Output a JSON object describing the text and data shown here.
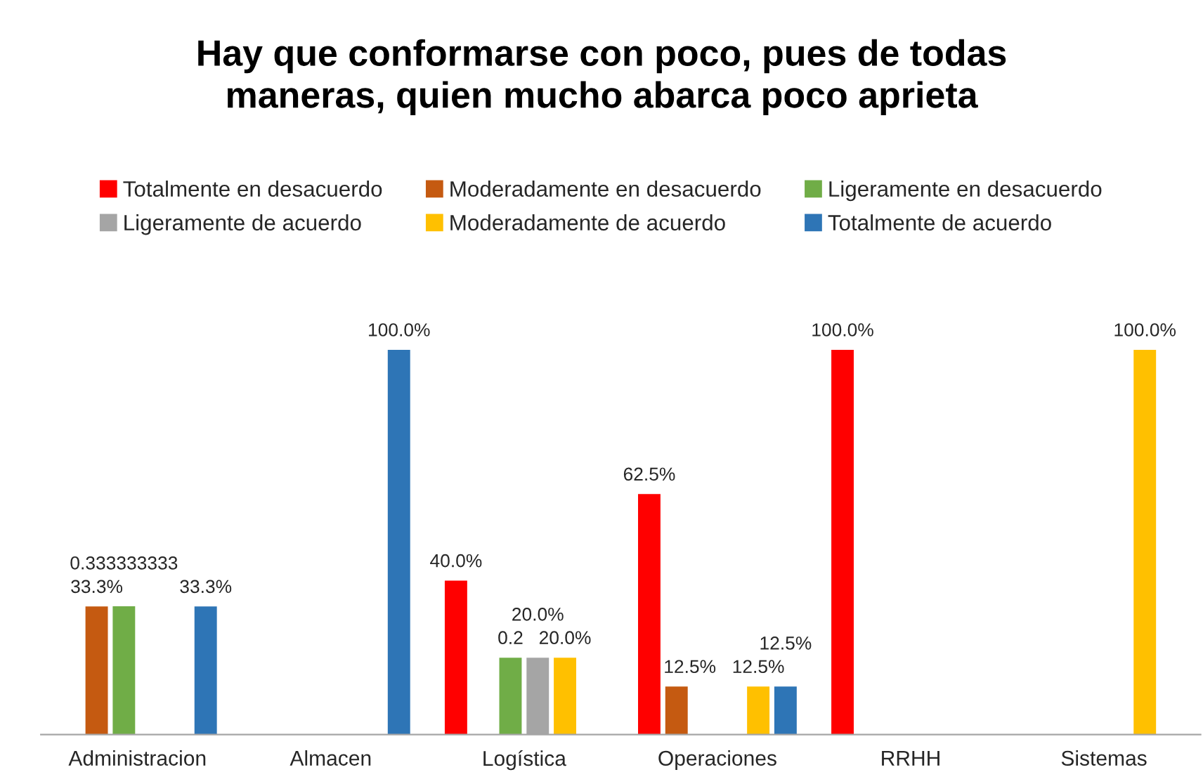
{
  "chart_data": {
    "type": "bar",
    "title": "Hay que conformarse con poco, pues de todas\nmaneras, quien mucho abarca poco aprieta",
    "categories": [
      "Administracion",
      "Almacen",
      "Logística",
      "Operaciones",
      "RRHH",
      "Sistemas"
    ],
    "tick_labels": "x",
    "legend": "top",
    "grid": false,
    "series": [
      {
        "name": "Totalmente en desacuerdo",
        "color": "#ff0000",
        "values": [
          null,
          null,
          0.4,
          0.625,
          1,
          null
        ],
        "value_labels": [
          null,
          null,
          "40.0%",
          "62.5%",
          "100.0%",
          null
        ]
      },
      {
        "name": "Moderadamente en desacuerdo",
        "color": "#c55a11",
        "values": [
          0.333,
          null,
          null,
          0.125,
          null,
          null
        ],
        "value_labels": [
          "33.3%",
          null,
          null,
          "12.5%",
          null,
          null
        ]
      },
      {
        "name": "Ligeramente en desacuerdo",
        "color": "#70ad47",
        "values": [
          0.333333333,
          null,
          0.2,
          null,
          null,
          null
        ],
        "value_labels": [
          "0.333333333",
          null,
          "0.2",
          null,
          null,
          null
        ]
      },
      {
        "name": "Ligeramente de acuerdo",
        "color": "#a5a5a5",
        "values": [
          null,
          null,
          0.2,
          null,
          null,
          null
        ],
        "value_labels": [
          null,
          null,
          "20.0%",
          null,
          null,
          null
        ]
      },
      {
        "name": "Moderadamente de acuerdo",
        "color": "#ffc000",
        "values": [
          null,
          null,
          0.2,
          0.125,
          null,
          1
        ],
        "value_labels": [
          null,
          null,
          "20.0%",
          "12.5%",
          null,
          "100.0%"
        ]
      },
      {
        "name": "Totalmente de acuerdo",
        "color": "#2e75b6",
        "values": [
          0.333,
          1,
          null,
          0.125,
          null,
          null
        ],
        "value_labels": [
          "33.3%",
          "100.0%",
          null,
          "12.5%",
          null,
          null
        ]
      }
    ]
  }
}
